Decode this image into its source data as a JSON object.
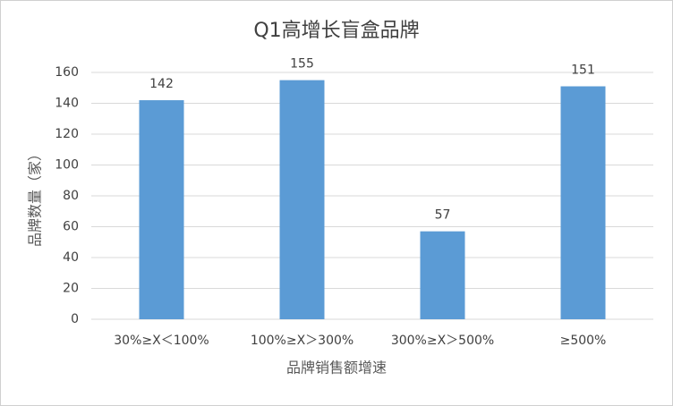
{
  "chart_data": {
    "type": "bar",
    "title": "Q1高增长盲盒品牌",
    "x_label": "品牌销售额增速",
    "y_label": "品牌数量（家）",
    "categories": [
      "30%≥X＜100%",
      "100%≥X＞300%",
      "300%≥X＞500%",
      "≥500%"
    ],
    "values": [
      142,
      155,
      57,
      151
    ],
    "color": "#5b9bd5",
    "ylim": [
      0,
      160
    ],
    "yticks": [
      0,
      20,
      40,
      60,
      80,
      100,
      120,
      140,
      160
    ],
    "grid": true
  }
}
